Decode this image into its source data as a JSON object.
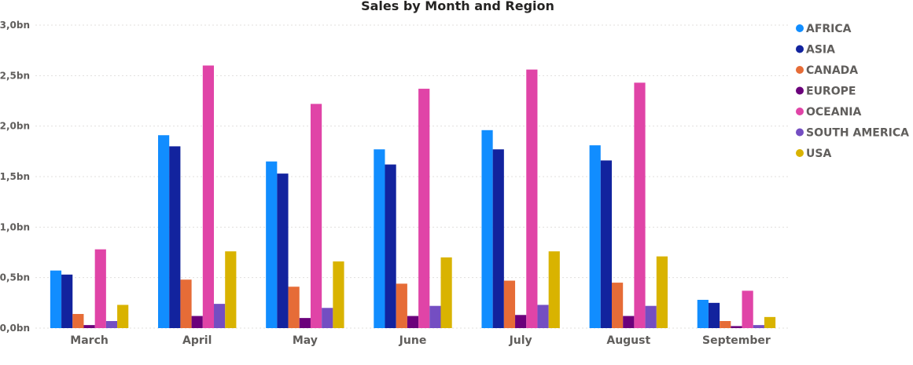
{
  "chart_data": {
    "type": "bar",
    "title": "Sales by Month and Region",
    "categories": [
      "March",
      "April",
      "May",
      "June",
      "July",
      "August",
      "September"
    ],
    "ylim": [
      0,
      3.0
    ],
    "yticks": [
      "0,0bn",
      "0,5bn",
      "1,0bn",
      "1,5bn",
      "2,0bn",
      "2,5bn",
      "3,0bn"
    ],
    "grid": true,
    "legend_position": "top-right",
    "series": [
      {
        "name": "AFRICA",
        "color": "#118DFF",
        "values": [
          0.57,
          1.91,
          1.65,
          1.77,
          1.96,
          1.81,
          0.28
        ]
      },
      {
        "name": "ASIA",
        "color": "#12239E",
        "values": [
          0.53,
          1.8,
          1.53,
          1.62,
          1.77,
          1.66,
          0.25
        ]
      },
      {
        "name": "CANADA",
        "color": "#E66C37",
        "values": [
          0.14,
          0.48,
          0.41,
          0.44,
          0.47,
          0.45,
          0.07
        ]
      },
      {
        "name": "EUROPE",
        "color": "#6B007B",
        "values": [
          0.03,
          0.12,
          0.1,
          0.12,
          0.13,
          0.12,
          0.02
        ]
      },
      {
        "name": "OCEANIA",
        "color": "#E044A7",
        "values": [
          0.78,
          2.6,
          2.22,
          2.37,
          2.56,
          2.43,
          0.37
        ]
      },
      {
        "name": "SOUTH AMERICA",
        "color": "#744EC2",
        "values": [
          0.07,
          0.24,
          0.2,
          0.22,
          0.23,
          0.22,
          0.03
        ]
      },
      {
        "name": "USA",
        "color": "#D9B300",
        "values": [
          0.23,
          0.76,
          0.66,
          0.7,
          0.76,
          0.71,
          0.11
        ]
      }
    ]
  }
}
